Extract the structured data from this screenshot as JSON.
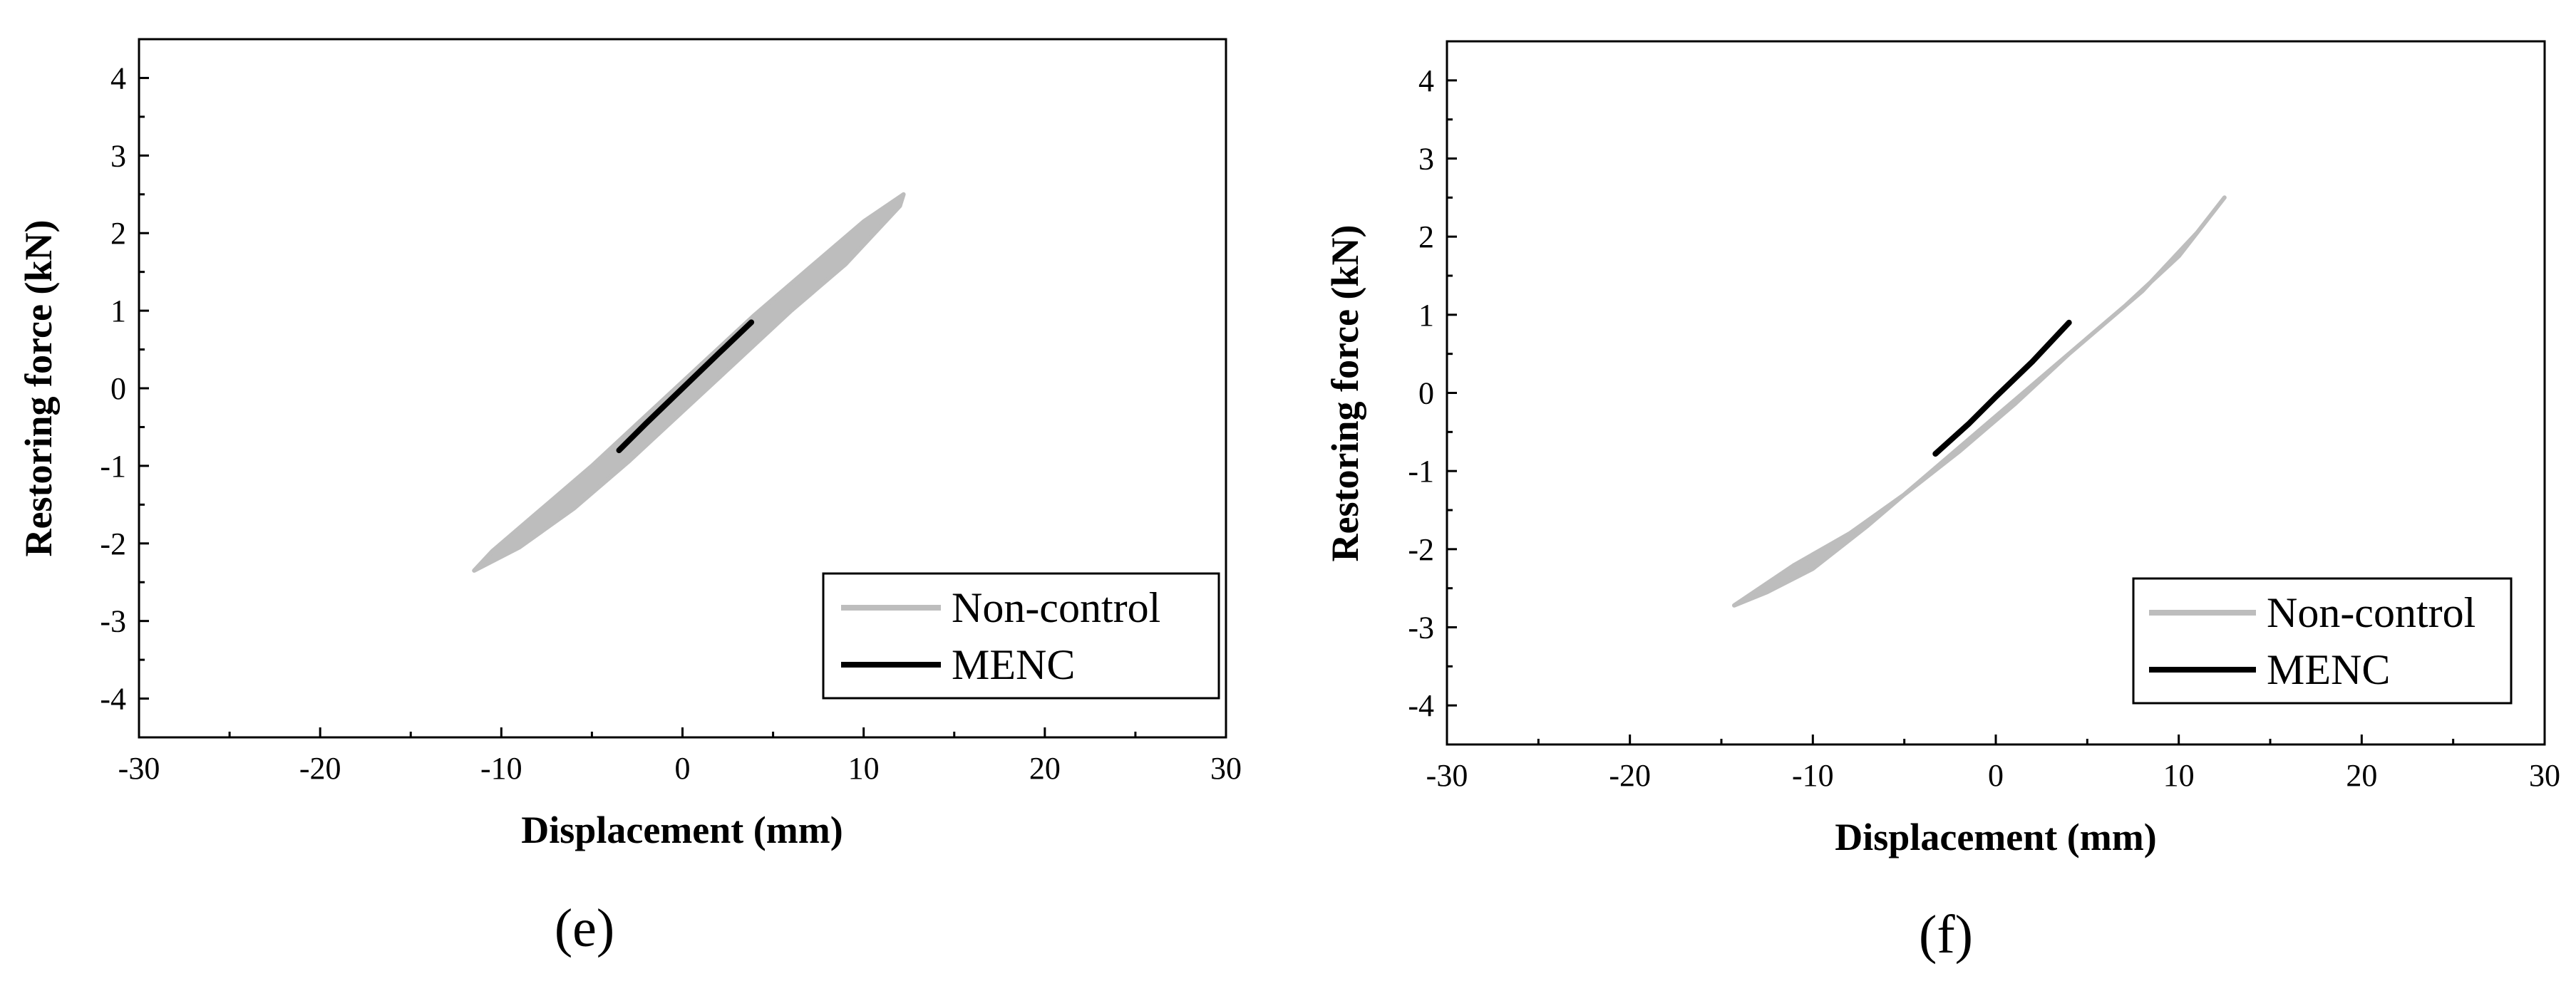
{
  "chart_data": [
    {
      "type": "line",
      "panel_label": "(e)",
      "xlabel": "Displacement (mm)",
      "ylabel": "Restoring force (kN)",
      "xlim": [
        -30,
        30
      ],
      "ylim": [
        -4.5,
        4.5
      ],
      "xticks": [
        -30,
        -20,
        -10,
        0,
        10,
        20,
        30
      ],
      "yticks": [
        -4,
        -3,
        -2,
        -1,
        0,
        1,
        2,
        3,
        4
      ],
      "grid": false,
      "legend_position": "bottom-right",
      "colors": {
        "Non-control": "#bdbdbd",
        "MENC": "#000000"
      },
      "series": [
        {
          "name": "Non-control",
          "x": [
            -11.5,
            -9,
            -6,
            -3,
            0,
            3,
            6,
            9,
            12,
            12.2,
            10,
            7,
            4,
            1,
            -2,
            -5,
            -8,
            -10.5,
            -11.5
          ],
          "y": [
            -2.35,
            -2.05,
            -1.55,
            -0.95,
            -0.3,
            0.35,
            1.0,
            1.6,
            2.35,
            2.5,
            2.15,
            1.55,
            0.95,
            0.3,
            -0.35,
            -1.0,
            -1.6,
            -2.1,
            -2.35
          ]
        },
        {
          "name": "MENC",
          "x": [
            -3.5,
            -2,
            0,
            2,
            3.8
          ],
          "y": [
            -0.8,
            -0.45,
            0.0,
            0.45,
            0.85
          ]
        }
      ]
    },
    {
      "type": "line",
      "panel_label": "(f)",
      "xlabel": "Displacement (mm)",
      "ylabel": "Restoring force (kN)",
      "xlim": [
        -30,
        30
      ],
      "ylim": [
        -4.5,
        4.5
      ],
      "xticks": [
        -30,
        -20,
        -10,
        0,
        10,
        20,
        30
      ],
      "yticks": [
        -4,
        -3,
        -2,
        -1,
        0,
        1,
        2,
        3,
        4
      ],
      "grid": false,
      "legend_position": "bottom-right",
      "colors": {
        "Non-control": "#bdbdbd",
        "MENC": "#000000"
      },
      "series": [
        {
          "name": "Non-control",
          "x": [
            -14.3,
            -11,
            -8,
            -5,
            -2,
            1,
            4,
            7,
            10,
            12.5,
            11,
            8,
            5,
            2,
            -1,
            -4,
            -7,
            -10,
            -12.5,
            -14.3
          ],
          "y": [
            -2.72,
            -2.2,
            -1.8,
            -1.3,
            -0.75,
            -0.15,
            0.5,
            1.1,
            1.75,
            2.5,
            2.05,
            1.3,
            0.7,
            0.1,
            -0.5,
            -1.1,
            -1.7,
            -2.25,
            -2.55,
            -2.72
          ]
        },
        {
          "name": "MENC",
          "x": [
            -3.3,
            -1.5,
            0,
            2,
            4
          ],
          "y": [
            -0.78,
            -0.4,
            -0.05,
            0.4,
            0.9
          ]
        }
      ]
    }
  ],
  "legend_labels": [
    "Non-control",
    "MENC"
  ]
}
